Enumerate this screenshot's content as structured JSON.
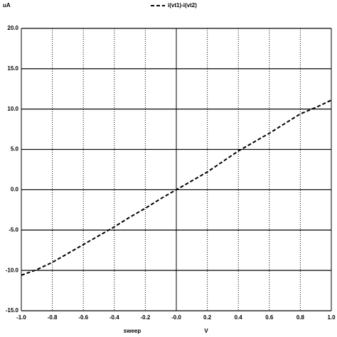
{
  "chart_data": {
    "type": "line",
    "ylabel": "uA",
    "xlabel": "sweep",
    "xunit": "V",
    "x": [
      -1.0,
      -0.9,
      -0.8,
      -0.7,
      -0.6,
      -0.5,
      -0.4,
      -0.3,
      -0.2,
      -0.1,
      0.0,
      0.1,
      0.2,
      0.3,
      0.4,
      0.5,
      0.6,
      0.7,
      0.8,
      0.9,
      1.0
    ],
    "series": [
      {
        "name": "i(vt1)-i(vt2)",
        "color": "#000000",
        "values": [
          -10.6,
          -9.9,
          -9.0,
          -7.9,
          -6.8,
          -5.7,
          -4.6,
          -3.4,
          -2.3,
          -1.1,
          0.0,
          1.1,
          2.2,
          3.5,
          4.8,
          5.9,
          7.0,
          8.2,
          9.4,
          10.2,
          11.1
        ]
      }
    ],
    "xlim": [
      -1.0,
      1.0
    ],
    "xticks": [
      {
        "value": -1.0,
        "label": "-1.0"
      },
      {
        "value": -0.8,
        "label": "-0.8"
      },
      {
        "value": -0.6,
        "label": "-0.6"
      },
      {
        "value": -0.4,
        "label": "-0.4"
      },
      {
        "value": -0.2,
        "label": "-0.2"
      },
      {
        "value": 0,
        "label": "-0.0"
      },
      {
        "value": 0.2,
        "label": "0.2"
      },
      {
        "value": 0.4,
        "label": "0.4"
      },
      {
        "value": 0.6,
        "label": "0.6"
      },
      {
        "value": 0.8,
        "label": "0.8"
      },
      {
        "value": 1.0,
        "label": "1.0"
      }
    ],
    "ylim": [
      -15,
      20
    ],
    "yticks": [
      {
        "value": -15,
        "label": "-15.0"
      },
      {
        "value": -10,
        "label": "-10.0"
      },
      {
        "value": -5,
        "label": "-5.0"
      },
      {
        "value": 0,
        "label": "0.0"
      },
      {
        "value": 5,
        "label": "5.0"
      },
      {
        "value": 10,
        "label": "10.0"
      },
      {
        "value": 15,
        "label": "15.0"
      },
      {
        "value": 20,
        "label": "20.0"
      }
    ],
    "grid": true
  }
}
